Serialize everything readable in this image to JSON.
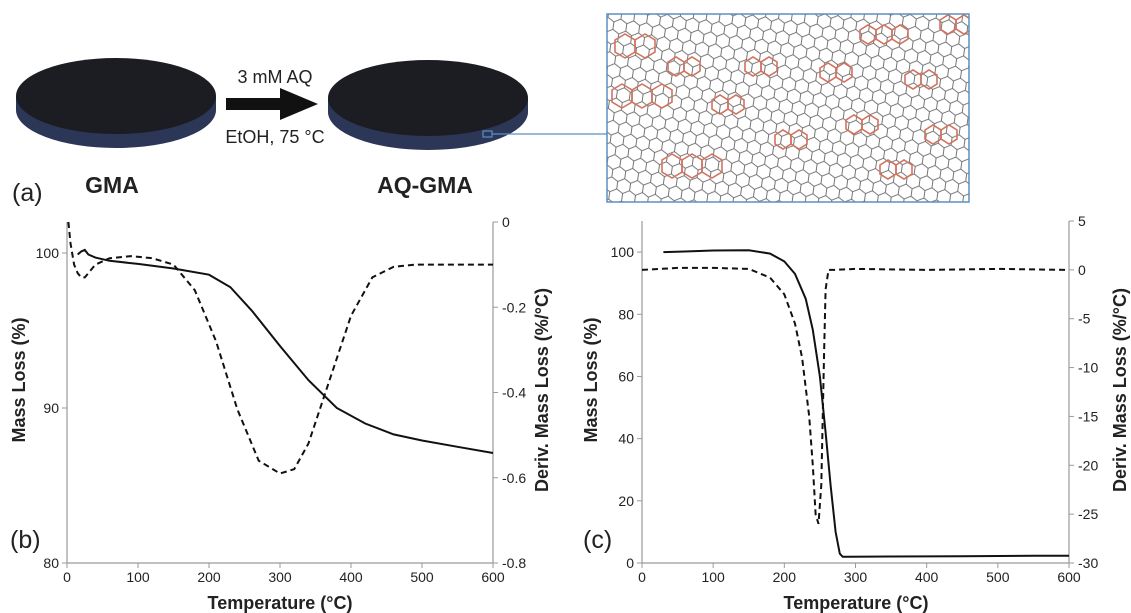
{
  "panel_a": {
    "panel_label": "(a)",
    "left_disk_label": "GMA",
    "right_disk_label": "AQ-GMA",
    "arrow_label_top": "3 mM AQ",
    "arrow_label_bottom": "EtOH, 75 °C"
  },
  "colors": {
    "disk_top": "#1b1d22",
    "disk_side": "#2c3656",
    "inset_border": "#5b8fc4",
    "lattice": "#555555",
    "aq_molecules": "#d0735f",
    "curves": "#111111",
    "axes": "#9a9a9a"
  },
  "chart_data": [
    {
      "type": "line",
      "panel_label": "(b)",
      "xlabel": "Temperature (°C)",
      "ylabel": "Mass Loss (%)",
      "y2label": "Deriv. Mass Loss (%/°C)",
      "xlim": [
        0,
        600
      ],
      "ylim": [
        80,
        102
      ],
      "y2lim": [
        -0.8,
        0
      ],
      "x_ticks": [
        0,
        100,
        200,
        300,
        400,
        500,
        600
      ],
      "y_ticks": [
        80,
        90,
        100
      ],
      "y2_ticks": [
        -0.8,
        -0.6,
        -0.4,
        -0.2,
        0
      ],
      "x_tick_labels": [
        "0",
        "100",
        "200",
        "300",
        "400",
        "500",
        "600"
      ],
      "y_tick_labels": [
        "80",
        "90",
        "100"
      ],
      "y2_tick_labels": [
        "-0.8",
        "-0.6",
        "-0.4",
        "-0.2",
        "0"
      ],
      "series": [
        {
          "axis": "left",
          "style": "solid",
          "x": [
            15,
            20,
            25,
            30,
            40,
            60,
            100,
            150,
            200,
            230,
            260,
            300,
            340,
            380,
            420,
            460,
            500,
            550,
            600
          ],
          "y": [
            99.9,
            100.1,
            100.2,
            99.9,
            99.7,
            99.5,
            99.3,
            99.0,
            98.6,
            97.8,
            96.3,
            94.0,
            91.8,
            90.0,
            89.0,
            88.3,
            87.9,
            87.5,
            87.1
          ]
        },
        {
          "axis": "right",
          "style": "dashed",
          "x": [
            2,
            5,
            10,
            15,
            20,
            25,
            30,
            40,
            60,
            90,
            120,
            150,
            180,
            210,
            240,
            270,
            300,
            320,
            340,
            370,
            400,
            430,
            460,
            490,
            530,
            570,
            600
          ],
          "y": [
            0,
            -0.05,
            -0.1,
            -0.12,
            -0.13,
            -0.13,
            -0.12,
            -0.1,
            -0.085,
            -0.08,
            -0.085,
            -0.1,
            -0.16,
            -0.28,
            -0.44,
            -0.56,
            -0.59,
            -0.58,
            -0.52,
            -0.37,
            -0.22,
            -0.13,
            -0.105,
            -0.1,
            -0.1,
            -0.1,
            -0.1
          ]
        }
      ]
    },
    {
      "type": "line",
      "panel_label": "(c)",
      "xlabel": "Temperature (°C)",
      "ylabel": "Mass Loss (%)",
      "y2label": "Deriv. Mass Loss (%/°C)",
      "xlim": [
        0,
        600
      ],
      "ylim": [
        0,
        110
      ],
      "y2lim": [
        -30,
        5
      ],
      "x_ticks": [
        0,
        100,
        200,
        300,
        400,
        500,
        600
      ],
      "y_ticks": [
        0,
        20,
        40,
        60,
        80,
        100
      ],
      "y2_ticks": [
        -30,
        -25,
        -20,
        -15,
        -10,
        -5,
        0,
        5
      ],
      "x_tick_labels": [
        "0",
        "100",
        "200",
        "300",
        "400",
        "500",
        "600"
      ],
      "y_tick_labels": [
        "0",
        "20",
        "40",
        "60",
        "80",
        "100"
      ],
      "y2_tick_labels": [
        "-30",
        "-25",
        "-20",
        "-15",
        "-10",
        "-5",
        "0",
        "5"
      ],
      "series": [
        {
          "axis": "left",
          "style": "solid",
          "x": [
            30,
            60,
            100,
            150,
            180,
            200,
            215,
            230,
            240,
            250,
            258,
            265,
            272,
            278,
            282,
            290,
            350,
            450,
            550,
            600
          ],
          "y": [
            100,
            100.2,
            100.5,
            100.6,
            99.5,
            97,
            93,
            85,
            75,
            60,
            42,
            25,
            10,
            3,
            2,
            2,
            2.1,
            2.2,
            2.3,
            2.3
          ]
        },
        {
          "axis": "right",
          "style": "dashed",
          "x": [
            0,
            50,
            100,
            150,
            180,
            200,
            215,
            225,
            235,
            240,
            244,
            248,
            252,
            256,
            258,
            262,
            270,
            300,
            400,
            500,
            600
          ],
          "y": [
            0,
            0.2,
            0.2,
            0.1,
            -0.8,
            -2.5,
            -5.5,
            -9,
            -15,
            -20,
            -25,
            -26,
            -22,
            -8,
            -2,
            0,
            0,
            0.1,
            0,
            0.1,
            0
          ]
        }
      ]
    }
  ]
}
